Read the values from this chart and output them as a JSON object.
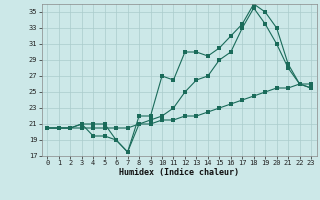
{
  "title": "",
  "xlabel": "Humidex (Indice chaleur)",
  "bg_color": "#cce8e8",
  "line_color": "#1a6b5a",
  "grid_color": "#aacccc",
  "xlim": [
    -0.5,
    23.5
  ],
  "ylim": [
    17,
    36
  ],
  "yticks": [
    17,
    19,
    21,
    23,
    25,
    27,
    29,
    31,
    33,
    35
  ],
  "xticks": [
    0,
    1,
    2,
    3,
    4,
    5,
    6,
    7,
    8,
    9,
    10,
    11,
    12,
    13,
    14,
    15,
    16,
    17,
    18,
    19,
    20,
    21,
    22,
    23
  ],
  "line1_x": [
    0,
    1,
    2,
    3,
    4,
    5,
    6,
    7,
    8,
    9,
    10,
    11,
    12,
    13,
    14,
    15,
    16,
    17,
    18,
    19,
    20,
    21,
    22,
    23
  ],
  "line1_y": [
    20.5,
    20.5,
    20.5,
    21,
    21,
    21,
    19,
    17.5,
    22,
    22,
    27,
    26.5,
    30,
    30,
    29.5,
    30.5,
    32,
    33.5,
    36,
    35,
    33,
    28.5,
    26,
    25.5
  ],
  "line2_x": [
    0,
    1,
    2,
    3,
    4,
    5,
    6,
    7,
    8,
    9,
    10,
    11,
    12,
    13,
    14,
    15,
    16,
    17,
    18,
    19,
    20,
    21,
    22,
    23
  ],
  "line2_y": [
    20.5,
    20.5,
    20.5,
    21,
    19.5,
    19.5,
    19,
    17.5,
    21,
    21.5,
    22,
    23,
    25,
    26.5,
    27,
    29,
    30,
    33,
    35.5,
    33.5,
    31,
    28,
    26,
    25.5
  ],
  "line3_x": [
    0,
    1,
    2,
    3,
    4,
    5,
    6,
    7,
    8,
    9,
    10,
    11,
    12,
    13,
    14,
    15,
    16,
    17,
    18,
    19,
    20,
    21,
    22,
    23
  ],
  "line3_y": [
    20.5,
    20.5,
    20.5,
    20.5,
    20.5,
    20.5,
    20.5,
    20.5,
    21,
    21,
    21.5,
    21.5,
    22,
    22,
    22.5,
    23,
    23.5,
    24,
    24.5,
    25,
    25.5,
    25.5,
    26,
    26
  ]
}
